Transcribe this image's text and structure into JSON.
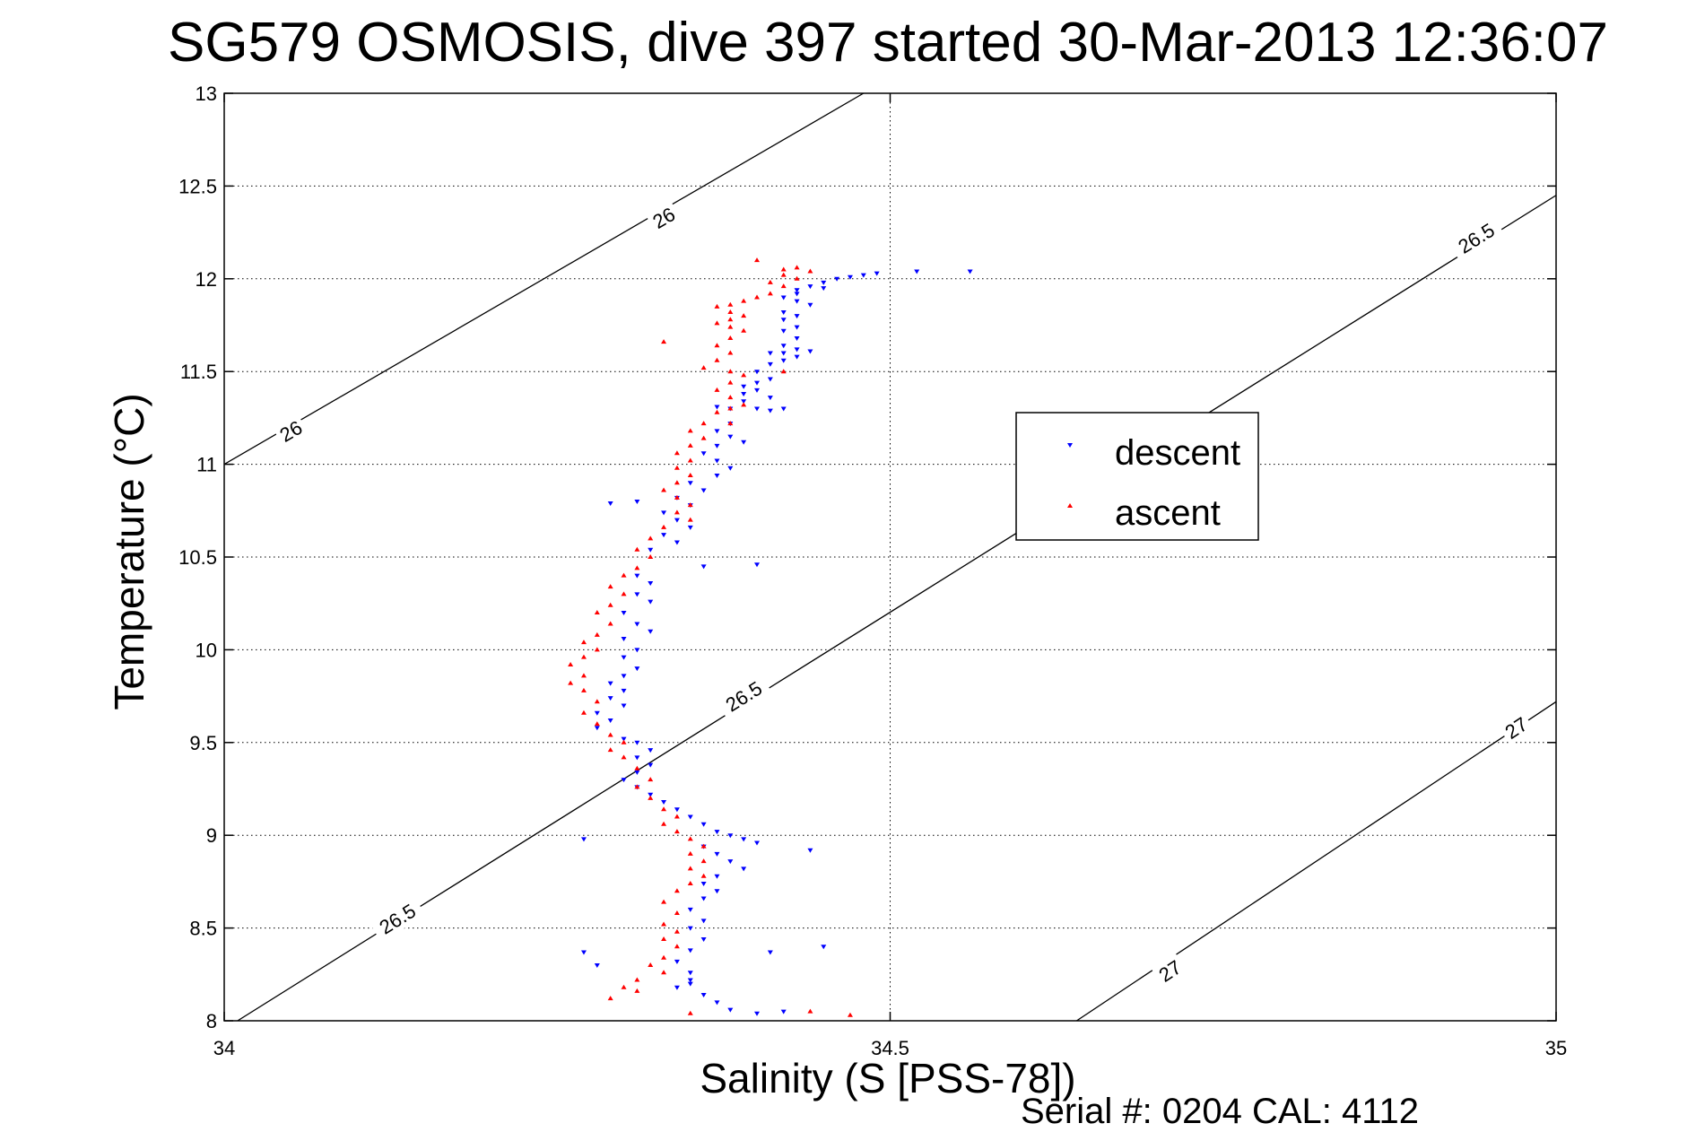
{
  "chart_data": {
    "type": "scatter",
    "title": "SG579 OSMOSIS, dive 397 started 30-Mar-2013 12:36:07",
    "xlabel": "Salinity (S [PSS-78])",
    "ylabel": "Temperature (°C)",
    "xlim": [
      34,
      35
    ],
    "ylim": [
      8,
      13
    ],
    "xticks": [
      "34",
      "34.5",
      "35"
    ],
    "yticks": [
      "8",
      "8.5",
      "9",
      "9.5",
      "10",
      "10.5",
      "11",
      "11.5",
      "12",
      "12.5",
      "13"
    ],
    "grid": true,
    "legend": {
      "placement": "right-middle",
      "entries": [
        "descent",
        "ascent"
      ]
    },
    "colors": {
      "descent": "#0000ff",
      "ascent": "#ff0000",
      "contour": "#000000"
    },
    "contours": [
      {
        "label": "26",
        "points": [
          [
            34.0,
            11.0
          ],
          [
            34.48,
            13.0
          ]
        ],
        "label_positions": [
          [
            34.05,
            11.18
          ],
          [
            34.33,
            12.33
          ]
        ]
      },
      {
        "label": "26.5",
        "points": [
          [
            34.01,
            8.0
          ],
          [
            35.0,
            12.45
          ]
        ],
        "label_positions": [
          [
            34.13,
            8.55
          ],
          [
            34.39,
            9.75
          ],
          [
            34.94,
            12.22
          ]
        ]
      },
      {
        "label": "27",
        "points": [
          [
            34.64,
            8.0
          ],
          [
            35.0,
            9.72
          ]
        ],
        "label_positions": [
          [
            34.71,
            8.27
          ],
          [
            34.97,
            9.58
          ]
        ]
      }
    ],
    "series": [
      {
        "name": "descent",
        "marker": "triangle-down",
        "points": [
          [
            34.49,
            12.03
          ],
          [
            34.48,
            12.02
          ],
          [
            34.47,
            12.01
          ],
          [
            34.46,
            12.0
          ],
          [
            34.45,
            11.98
          ],
          [
            34.44,
            11.96
          ],
          [
            34.43,
            11.94
          ],
          [
            34.43,
            11.92
          ],
          [
            34.42,
            11.9
          ],
          [
            34.43,
            11.88
          ],
          [
            34.44,
            11.86
          ],
          [
            34.45,
            11.95
          ],
          [
            34.42,
            11.82
          ],
          [
            34.43,
            11.8
          ],
          [
            34.42,
            11.78
          ],
          [
            34.43,
            11.74
          ],
          [
            34.42,
            11.72
          ],
          [
            34.43,
            11.68
          ],
          [
            34.42,
            11.64
          ],
          [
            34.43,
            11.62
          ],
          [
            34.42,
            11.6
          ],
          [
            34.43,
            11.58
          ],
          [
            34.41,
            11.6
          ],
          [
            34.44,
            11.61
          ],
          [
            34.42,
            11.56
          ],
          [
            34.41,
            11.54
          ],
          [
            34.4,
            11.5
          ],
          [
            34.41,
            11.46
          ],
          [
            34.4,
            11.44
          ],
          [
            34.39,
            11.42
          ],
          [
            34.4,
            11.4
          ],
          [
            34.39,
            11.38
          ],
          [
            34.41,
            11.36
          ],
          [
            34.39,
            11.34
          ],
          [
            34.4,
            11.3
          ],
          [
            34.41,
            11.29
          ],
          [
            34.42,
            11.3
          ],
          [
            34.38,
            11.3
          ],
          [
            34.37,
            11.31
          ],
          [
            34.38,
            11.22
          ],
          [
            34.37,
            11.18
          ],
          [
            34.38,
            11.15
          ],
          [
            34.39,
            11.12
          ],
          [
            34.37,
            11.1
          ],
          [
            34.36,
            11.06
          ],
          [
            34.37,
            11.02
          ],
          [
            34.38,
            10.98
          ],
          [
            34.37,
            10.94
          ],
          [
            34.35,
            10.9
          ],
          [
            34.36,
            10.86
          ],
          [
            34.34,
            10.82
          ],
          [
            34.35,
            10.78
          ],
          [
            34.33,
            10.74
          ],
          [
            34.34,
            10.7
          ],
          [
            34.35,
            10.66
          ],
          [
            34.33,
            10.62
          ],
          [
            34.34,
            10.58
          ],
          [
            34.32,
            10.54
          ],
          [
            34.36,
            10.45
          ],
          [
            34.4,
            10.46
          ],
          [
            34.31,
            10.4
          ],
          [
            34.32,
            10.36
          ],
          [
            34.31,
            10.3
          ],
          [
            34.32,
            10.26
          ],
          [
            34.3,
            10.2
          ],
          [
            34.31,
            10.14
          ],
          [
            34.32,
            10.1
          ],
          [
            34.3,
            10.06
          ],
          [
            34.31,
            10.0
          ],
          [
            34.3,
            9.96
          ],
          [
            34.31,
            9.9
          ],
          [
            34.3,
            9.86
          ],
          [
            34.29,
            9.82
          ],
          [
            34.3,
            9.78
          ],
          [
            34.29,
            9.74
          ],
          [
            34.3,
            9.7
          ],
          [
            34.28,
            9.66
          ],
          [
            34.29,
            9.62
          ],
          [
            34.28,
            9.58
          ],
          [
            34.3,
            9.52
          ],
          [
            34.31,
            9.5
          ],
          [
            34.32,
            9.46
          ],
          [
            34.31,
            9.42
          ],
          [
            34.32,
            9.38
          ],
          [
            34.31,
            9.34
          ],
          [
            34.3,
            9.3
          ],
          [
            34.31,
            9.26
          ],
          [
            34.32,
            9.22
          ],
          [
            34.33,
            9.18
          ],
          [
            34.34,
            9.14
          ],
          [
            34.35,
            9.1
          ],
          [
            34.36,
            9.06
          ],
          [
            34.37,
            9.02
          ],
          [
            34.38,
            9.0
          ],
          [
            34.39,
            8.98
          ],
          [
            34.4,
            8.96
          ],
          [
            34.36,
            8.94
          ],
          [
            34.37,
            8.9
          ],
          [
            34.38,
            8.86
          ],
          [
            34.39,
            8.82
          ],
          [
            34.37,
            8.78
          ],
          [
            34.36,
            8.74
          ],
          [
            34.37,
            8.7
          ],
          [
            34.36,
            8.66
          ],
          [
            34.35,
            8.6
          ],
          [
            34.36,
            8.54
          ],
          [
            34.35,
            8.5
          ],
          [
            34.36,
            8.44
          ],
          [
            34.35,
            8.38
          ],
          [
            34.34,
            8.32
          ],
          [
            34.35,
            8.26
          ],
          [
            34.35,
            8.22
          ],
          [
            34.35,
            8.2
          ],
          [
            34.34,
            8.18
          ],
          [
            34.36,
            8.14
          ],
          [
            34.37,
            8.1
          ],
          [
            34.38,
            8.06
          ],
          [
            34.4,
            8.04
          ],
          [
            34.42,
            8.05
          ],
          [
            34.28,
            8.3
          ],
          [
            34.27,
            8.37
          ],
          [
            34.41,
            8.37
          ],
          [
            34.45,
            8.4
          ],
          [
            34.27,
            8.98
          ],
          [
            34.44,
            8.92
          ],
          [
            34.29,
            10.79
          ],
          [
            34.52,
            12.04
          ],
          [
            34.56,
            12.04
          ],
          [
            34.31,
            10.8
          ]
        ]
      },
      {
        "name": "ascent",
        "marker": "triangle-up",
        "points": [
          [
            34.43,
            12.06
          ],
          [
            34.42,
            12.05
          ],
          [
            34.44,
            12.04
          ],
          [
            34.42,
            12.02
          ],
          [
            34.43,
            12.0
          ],
          [
            34.41,
            11.98
          ],
          [
            34.42,
            11.96
          ],
          [
            34.41,
            11.92
          ],
          [
            34.4,
            11.9
          ],
          [
            34.39,
            11.88
          ],
          [
            34.38,
            11.86
          ],
          [
            34.37,
            11.85
          ],
          [
            34.38,
            11.82
          ],
          [
            34.39,
            11.8
          ],
          [
            34.38,
            11.78
          ],
          [
            34.37,
            11.76
          ],
          [
            34.38,
            11.74
          ],
          [
            34.39,
            11.72
          ],
          [
            34.38,
            11.68
          ],
          [
            34.37,
            11.64
          ],
          [
            34.38,
            11.6
          ],
          [
            34.37,
            11.56
          ],
          [
            34.36,
            11.52
          ],
          [
            34.38,
            11.5
          ],
          [
            34.39,
            11.48
          ],
          [
            34.38,
            11.44
          ],
          [
            34.37,
            11.4
          ],
          [
            34.38,
            11.36
          ],
          [
            34.39,
            11.32
          ],
          [
            34.38,
            11.3
          ],
          [
            34.37,
            11.28
          ],
          [
            34.36,
            11.22
          ],
          [
            34.35,
            11.18
          ],
          [
            34.36,
            11.14
          ],
          [
            34.35,
            11.1
          ],
          [
            34.34,
            11.06
          ],
          [
            34.35,
            11.02
          ],
          [
            34.34,
            10.98
          ],
          [
            34.35,
            10.94
          ],
          [
            34.34,
            10.9
          ],
          [
            34.33,
            10.86
          ],
          [
            34.34,
            10.82
          ],
          [
            34.35,
            10.78
          ],
          [
            34.34,
            10.74
          ],
          [
            34.35,
            10.7
          ],
          [
            34.33,
            10.66
          ],
          [
            34.32,
            10.6
          ],
          [
            34.31,
            10.54
          ],
          [
            34.32,
            10.5
          ],
          [
            34.31,
            10.44
          ],
          [
            34.3,
            10.4
          ],
          [
            34.29,
            10.34
          ],
          [
            34.3,
            10.3
          ],
          [
            34.29,
            10.24
          ],
          [
            34.28,
            10.2
          ],
          [
            34.29,
            10.14
          ],
          [
            34.28,
            10.08
          ],
          [
            34.27,
            10.04
          ],
          [
            34.28,
            10.0
          ],
          [
            34.27,
            9.96
          ],
          [
            34.26,
            9.92
          ],
          [
            34.27,
            9.86
          ],
          [
            34.26,
            9.82
          ],
          [
            34.27,
            9.78
          ],
          [
            34.28,
            9.72
          ],
          [
            34.27,
            9.66
          ],
          [
            34.28,
            9.6
          ],
          [
            34.29,
            9.54
          ],
          [
            34.3,
            9.5
          ],
          [
            34.29,
            9.46
          ],
          [
            34.3,
            9.42
          ],
          [
            34.31,
            9.36
          ],
          [
            34.32,
            9.3
          ],
          [
            34.31,
            9.26
          ],
          [
            34.32,
            9.2
          ],
          [
            34.33,
            9.14
          ],
          [
            34.34,
            9.1
          ],
          [
            34.33,
            9.06
          ],
          [
            34.34,
            9.02
          ],
          [
            34.35,
            8.98
          ],
          [
            34.36,
            8.94
          ],
          [
            34.35,
            8.9
          ],
          [
            34.36,
            8.86
          ],
          [
            34.35,
            8.82
          ],
          [
            34.36,
            8.78
          ],
          [
            34.35,
            8.74
          ],
          [
            34.34,
            8.7
          ],
          [
            34.33,
            8.64
          ],
          [
            34.34,
            8.58
          ],
          [
            34.33,
            8.52
          ],
          [
            34.34,
            8.48
          ],
          [
            34.33,
            8.44
          ],
          [
            34.34,
            8.4
          ],
          [
            34.33,
            8.34
          ],
          [
            34.32,
            8.3
          ],
          [
            34.33,
            8.26
          ],
          [
            34.31,
            8.22
          ],
          [
            34.3,
            8.18
          ],
          [
            34.31,
            8.16
          ],
          [
            34.29,
            8.12
          ],
          [
            34.35,
            8.04
          ],
          [
            34.47,
            8.03
          ],
          [
            34.4,
            12.1
          ],
          [
            34.33,
            11.66
          ],
          [
            34.42,
            11.5
          ],
          [
            34.38,
            11.22
          ],
          [
            34.44,
            8.05
          ]
        ]
      }
    ],
    "annotations": [
      "Serial #: 0204  CAL: 4112"
    ]
  }
}
